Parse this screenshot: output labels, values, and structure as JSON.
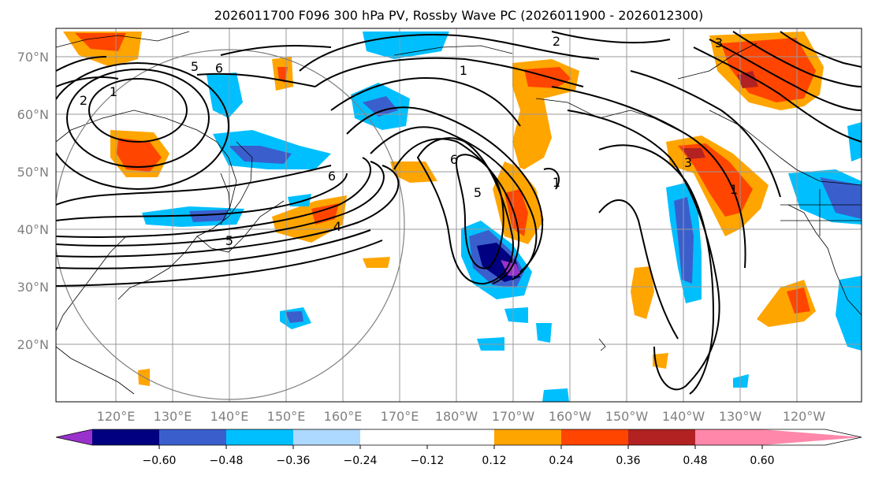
{
  "title": "2026011700 F096 300 hPa PV, Rossby Wave PC (2026011900 - 2026012300)",
  "map": {
    "lat_labels": [
      "70°N",
      "60°N",
      "50°N",
      "40°N",
      "30°N",
      "20°N"
    ],
    "lon_labels": [
      "120°E",
      "130°E",
      "140°E",
      "150°E",
      "160°E",
      "170°E",
      "180°W",
      "170°W",
      "160°W",
      "150°W",
      "140°W",
      "130°W",
      "120°W"
    ],
    "contour_labels": [
      "2",
      "3",
      "1",
      "2",
      "1",
      "5",
      "6",
      "6",
      "4",
      "5",
      "6",
      "5",
      "1",
      "3",
      "1"
    ]
  },
  "colorbar": {
    "ticks": [
      "−0.60",
      "−0.48",
      "−0.36",
      "−0.24",
      "−0.12",
      "0.12",
      "0.24",
      "0.36",
      "0.48",
      "0.60"
    ],
    "colors": [
      "#9932cc",
      "#000080",
      "#3a5fcd",
      "#00bfff",
      "#add8ff",
      "#ffffff",
      "#ffe88c",
      "#ffa500",
      "#ff4500",
      "#b22222",
      "#ff88aa"
    ]
  }
}
